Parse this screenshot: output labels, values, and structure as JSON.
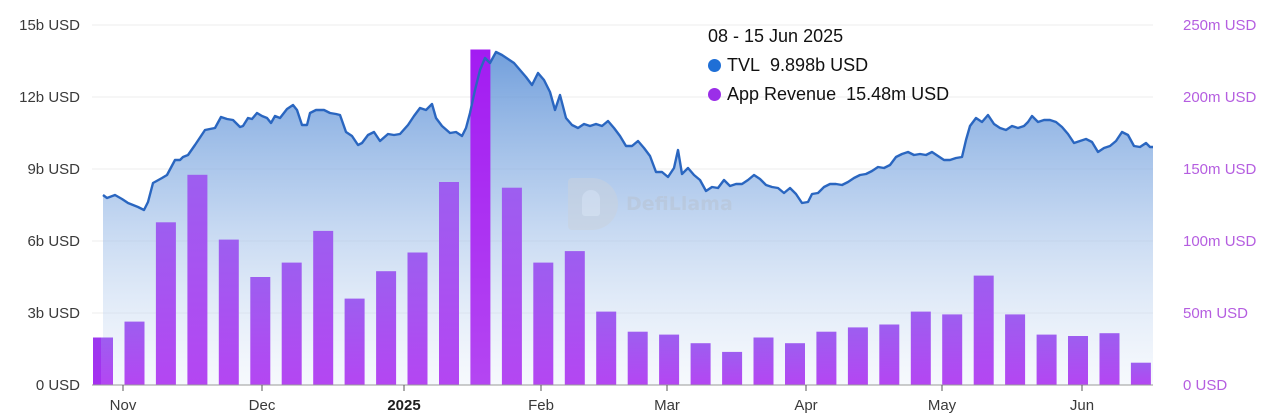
{
  "chart_data": {
    "type": "bar+area",
    "title": "",
    "watermark": "DefiLlama",
    "x_tick_labels": [
      "Nov",
      "Dec",
      "2025",
      "Feb",
      "Mar",
      "Apr",
      "May",
      "Jun"
    ],
    "y_left": {
      "label": "TVL",
      "ticks": [
        "0 USD",
        "3b USD",
        "6b USD",
        "9b USD",
        "12b USD",
        "15b USD"
      ],
      "range": [
        0,
        15
      ],
      "unit": "b USD"
    },
    "y_right": {
      "label": "App Revenue",
      "ticks": [
        "0 USD",
        "50m USD",
        "100m USD",
        "150m USD",
        "200m USD",
        "250m USD"
      ],
      "range": [
        0,
        250
      ],
      "unit": "m USD"
    },
    "grid": true,
    "series": [
      {
        "name": "App Revenue",
        "type": "bar",
        "axis": "right",
        "color": "#a84ef0",
        "unit": "m USD",
        "frequency": "weekly",
        "values": [
          33,
          44,
          113,
          146,
          101,
          75,
          85,
          107,
          60,
          79,
          92,
          141,
          233,
          137,
          85,
          93,
          51,
          37,
          35,
          29,
          23,
          33,
          29,
          37,
          40,
          42,
          51,
          49,
          76,
          49,
          35,
          34,
          36,
          15.48
        ]
      },
      {
        "name": "TVL",
        "type": "area",
        "axis": "left",
        "color": "#2f6fc8",
        "unit": "b USD",
        "approx_values_by_month": {
          "late_Oct": 7.9,
          "Nov_start": 7.6,
          "Nov_mid": 9.5,
          "Dec": 11.2,
          "Dec_end": 10.7,
          "Jan_mid": 11.4,
          "Jan_peak": 13.9,
          "Feb": 10.9,
          "Mar": 8.9,
          "Apr": 7.9,
          "May": 9.5,
          "May_mid": 11.1,
          "Jun": 10.5,
          "Jun_15": 9.898
        }
      }
    ],
    "tooltip": {
      "date": "08 - 15 Jun 2025",
      "items": [
        {
          "label": "TVL",
          "value": "9.898b USD",
          "color": "#1f6fd6"
        },
        {
          "label": "App Revenue",
          "value": "15.48m USD",
          "color": "#9b2ee8"
        }
      ]
    }
  }
}
